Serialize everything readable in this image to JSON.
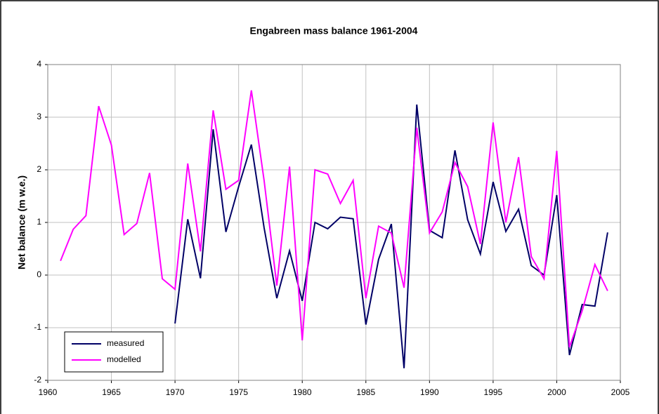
{
  "chart_data": {
    "type": "line",
    "title": "Engabreen mass balance 1961-2004",
    "y_label": "Net balance (m w.e.)",
    "x": [
      1961,
      1962,
      1963,
      1964,
      1965,
      1966,
      1967,
      1968,
      1969,
      1970,
      1971,
      1972,
      1973,
      1974,
      1975,
      1976,
      1977,
      1978,
      1979,
      1980,
      1981,
      1982,
      1983,
      1984,
      1985,
      1986,
      1987,
      1988,
      1989,
      1990,
      1991,
      1992,
      1993,
      1994,
      1995,
      1996,
      1997,
      1998,
      1999,
      2000,
      2001,
      2002,
      2003,
      2004
    ],
    "series": [
      {
        "name": "measured",
        "color": "#000066",
        "values": [
          null,
          null,
          null,
          null,
          null,
          null,
          null,
          null,
          null,
          -0.92,
          1.06,
          -0.06,
          2.77,
          0.82,
          1.68,
          2.48,
          0.9,
          -0.44,
          0.46,
          -0.49,
          1.0,
          0.88,
          1.1,
          1.07,
          -0.94,
          0.3,
          0.97,
          -1.77,
          3.24,
          0.85,
          0.71,
          2.37,
          1.05,
          0.4,
          1.77,
          0.83,
          1.25,
          0.18,
          0.0,
          1.52,
          -1.52,
          -0.56,
          -0.59,
          0.81
        ]
      },
      {
        "name": "modelled",
        "color": "#ff00ff",
        "values": [
          0.27,
          0.87,
          1.13,
          3.21,
          2.47,
          0.77,
          0.98,
          1.94,
          -0.07,
          -0.27,
          2.12,
          0.45,
          3.13,
          1.63,
          1.8,
          3.51,
          1.8,
          -0.2,
          2.06,
          -1.24,
          2.0,
          1.92,
          1.36,
          1.8,
          -0.44,
          0.93,
          0.8,
          -0.24,
          2.8,
          0.8,
          1.2,
          2.14,
          1.68,
          0.59,
          2.9,
          1.0,
          2.24,
          0.35,
          -0.07,
          2.36,
          -1.37,
          -0.68,
          0.2,
          -0.3
        ]
      }
    ],
    "xlim": [
      1960,
      2005
    ],
    "xticks": [
      1960,
      1965,
      1970,
      1975,
      1980,
      1985,
      1990,
      1995,
      2000,
      2005
    ],
    "ylim": [
      -2,
      4
    ],
    "yticks": [
      -2,
      -1,
      0,
      1,
      2,
      3,
      4
    ],
    "grid": true,
    "legend": "bottom-left"
  }
}
